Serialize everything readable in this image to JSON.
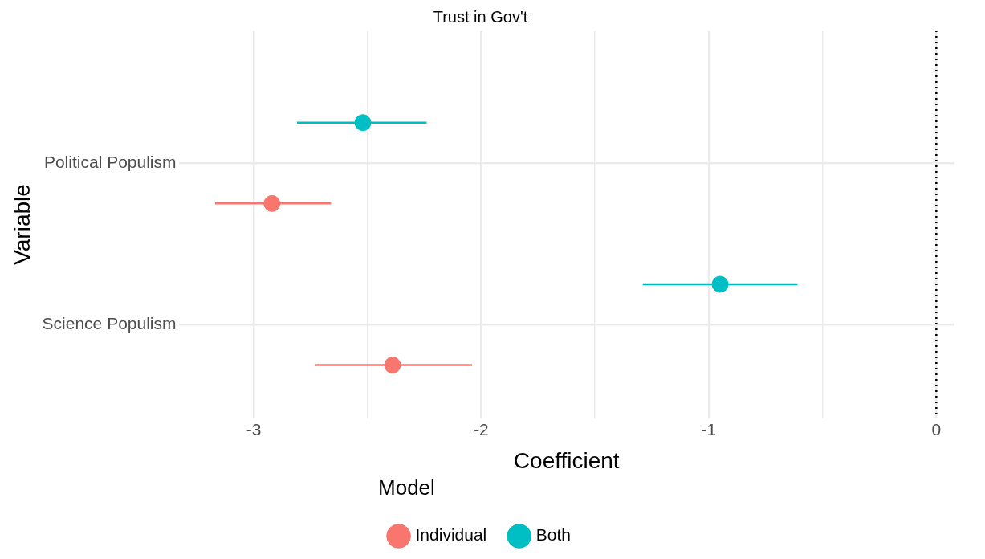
{
  "chart_data": {
    "type": "scatter",
    "orientation": "horizontal",
    "title": "Trust in Gov't",
    "xlabel": "Coefficient",
    "ylabel": "Variable",
    "legend_title": "Model",
    "categories": [
      "Political Populism",
      "Science Populism"
    ],
    "series": [
      {
        "name": "Individual",
        "color": "#f8766d",
        "values": [
          -2.92,
          -2.39
        ],
        "errors": [
          [
            -3.17,
            -2.66
          ],
          [
            -2.73,
            -2.04
          ]
        ]
      },
      {
        "name": "Both",
        "color": "#00bfc4",
        "values": [
          -2.52,
          -0.95
        ],
        "errors": [
          [
            -2.81,
            -2.24
          ],
          [
            -1.29,
            -0.61
          ]
        ]
      }
    ],
    "xlim": [
      -3.33,
      0.08
    ],
    "xticks": [
      -3,
      {
        "value": -2.5,
        "label": null
      },
      -2,
      {
        "value": -1.5,
        "label": null
      },
      -1,
      {
        "value": -0.5,
        "label": null
      },
      0
    ],
    "ref_lines": [
      {
        "axis": "x",
        "value": 0,
        "color": "#000000",
        "line_style": "dotted"
      }
    ],
    "grid": true,
    "legend": "bottom",
    "marker": "circle"
  }
}
